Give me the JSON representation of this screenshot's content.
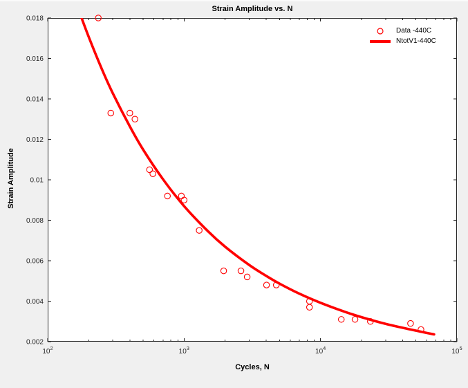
{
  "figure": {
    "background": "#f0f0f0",
    "plot_background": "#ffffff",
    "axis_color": "#262626",
    "accent_red": "#ff0000"
  },
  "chart_data": {
    "type": "scatter",
    "title": "Strain Amplitude vs. N",
    "xlabel": "Cycles, N",
    "ylabel": "Strain Amplitude",
    "x_scale": "log",
    "y_scale": "linear",
    "xlim": [
      100,
      100000
    ],
    "ylim": [
      0.002,
      0.018
    ],
    "grid": false,
    "legend_position": "top-right",
    "x_ticks": [
      {
        "base": "10",
        "exp": "2",
        "value": 100
      },
      {
        "base": "10",
        "exp": "3",
        "value": 1000
      },
      {
        "base": "10",
        "exp": "4",
        "value": 10000
      },
      {
        "base": "10",
        "exp": "5",
        "value": 100000
      }
    ],
    "y_ticks": [
      {
        "label": "0.002",
        "value": 0.002
      },
      {
        "label": "0.004",
        "value": 0.004
      },
      {
        "label": "0.006",
        "value": 0.006
      },
      {
        "label": "0.008",
        "value": 0.008
      },
      {
        "label": "0.01",
        "value": 0.01
      },
      {
        "label": "0.012",
        "value": 0.012
      },
      {
        "label": "0.014",
        "value": 0.014
      },
      {
        "label": "0.016",
        "value": 0.016
      },
      {
        "label": "0.018",
        "value": 0.018
      }
    ],
    "series": [
      {
        "name": "Data -440C",
        "kind": "scatter",
        "marker": "circle",
        "color": "#ff0000",
        "points": [
          [
            235,
            0.018
          ],
          [
            290,
            0.0133
          ],
          [
            400,
            0.0133
          ],
          [
            436,
            0.013
          ],
          [
            558,
            0.0105
          ],
          [
            590,
            0.0103
          ],
          [
            755,
            0.0092
          ],
          [
            955,
            0.0092
          ],
          [
            1000,
            0.009
          ],
          [
            1290,
            0.0075
          ],
          [
            1950,
            0.0055
          ],
          [
            2610,
            0.0055
          ],
          [
            2900,
            0.0052
          ],
          [
            4020,
            0.0048
          ],
          [
            4740,
            0.0048
          ],
          [
            8300,
            0.004
          ],
          [
            8300,
            0.0037
          ],
          [
            14200,
            0.0031
          ],
          [
            17900,
            0.0031
          ],
          [
            23200,
            0.003
          ],
          [
            45700,
            0.0029
          ],
          [
            54500,
            0.0026
          ]
        ]
      },
      {
        "name": "NtotV1-440C",
        "kind": "line",
        "color": "#ff0000",
        "line_width": 3.6,
        "points": [
          [
            170,
            0.01833
          ],
          [
            200,
            0.01706
          ],
          [
            250,
            0.01546
          ],
          [
            300,
            0.01428
          ],
          [
            400,
            0.01264
          ],
          [
            500,
            0.0115
          ],
          [
            700,
            0.01003
          ],
          [
            1000,
            0.0087
          ],
          [
            1500,
            0.00745
          ],
          [
            2000,
            0.00669
          ],
          [
            3000,
            0.00579
          ],
          [
            4000,
            0.00525
          ],
          [
            5000,
            0.00487
          ],
          [
            7000,
            0.00437
          ],
          [
            10000,
            0.00392
          ],
          [
            15000,
            0.00348
          ],
          [
            20000,
            0.00321
          ],
          [
            30000,
            0.00288
          ],
          [
            45000,
            0.00261
          ],
          [
            60000,
            0.00243
          ],
          [
            68000,
            0.00236
          ]
        ]
      }
    ],
    "legend": {
      "entries": [
        {
          "label": "Data -440C",
          "marker": "circle"
        },
        {
          "label": "NtotV1-440C",
          "marker": "line"
        }
      ]
    }
  }
}
